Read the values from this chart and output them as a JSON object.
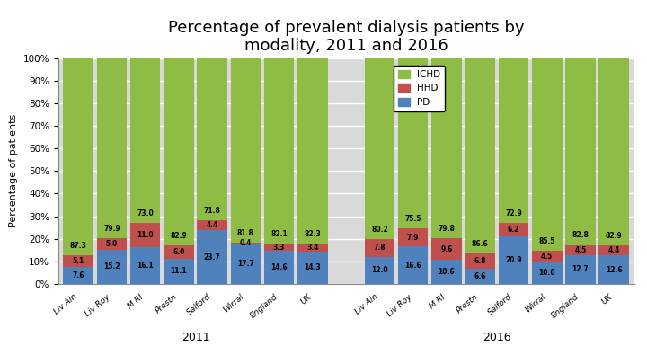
{
  "title": "Percentage of prevalent dialysis patients by\nmodality, 2011 and 2016",
  "ylabel": "Percentage of patients",
  "categories_2011": [
    "Liv Ain",
    "Liv Roy",
    "M RI",
    "Prestn",
    "Salford",
    "Wirral",
    "England",
    "UK"
  ],
  "categories_2016": [
    "Liv Ain",
    "Liv Roy",
    "M RI",
    "Prestn",
    "Salford",
    "Wirral",
    "England",
    "UK"
  ],
  "pd_2011": [
    7.6,
    15.2,
    16.1,
    11.1,
    23.7,
    17.7,
    14.6,
    14.3
  ],
  "hhd_2011": [
    5.1,
    5.0,
    11.0,
    6.0,
    4.4,
    0.4,
    3.3,
    3.4
  ],
  "ichd_2011": [
    87.3,
    79.9,
    73.0,
    82.9,
    71.8,
    81.8,
    82.1,
    82.3
  ],
  "pd_2016": [
    12.0,
    16.6,
    10.6,
    6.6,
    20.9,
    10.0,
    12.7,
    12.6
  ],
  "hhd_2016": [
    7.8,
    7.9,
    9.6,
    6.8,
    6.2,
    4.5,
    4.5,
    4.4
  ],
  "ichd_2016": [
    80.2,
    75.5,
    79.8,
    86.6,
    72.9,
    85.5,
    82.8,
    82.9
  ],
  "color_ichd": "#8fbc45",
  "color_hhd": "#c0504d",
  "color_pd": "#4f81bd",
  "color_bg": "#d9d9d9",
  "bar_width": 0.9,
  "yticks": [
    0,
    10,
    20,
    30,
    40,
    50,
    60,
    70,
    80,
    90,
    100
  ],
  "ytick_labels": [
    "0%",
    "10%",
    "20%",
    "30%",
    "40%",
    "50%",
    "60%",
    "70%",
    "80%",
    "90%",
    "100%"
  ],
  "xlabel_2011": "2011",
  "xlabel_2016": "2016",
  "label_fontsize": 5.5,
  "title_fontsize": 13
}
